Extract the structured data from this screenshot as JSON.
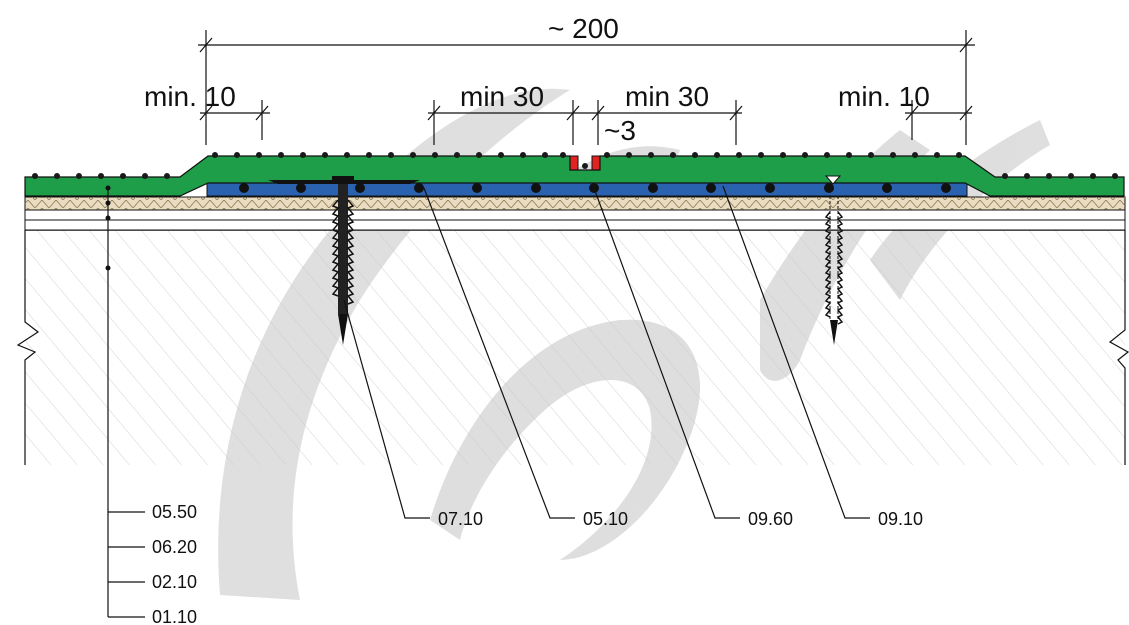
{
  "dimensions": {
    "total": "~ 200",
    "left_min": "min. 10",
    "right_min": "min. 10",
    "center_left": "min 30",
    "center_right": "min 30",
    "gap": "~3"
  },
  "callouts_bottom": [
    "07.10",
    "05.10",
    "09.60",
    "09.10"
  ],
  "callouts_left": [
    "05.50",
    "06.20",
    "02.10",
    "01.10"
  ],
  "colors": {
    "membrane": "#1f9e4a",
    "band": "#2b62b0",
    "seal": "#e32222",
    "substrate": "#e9dcc0",
    "watermark": "#d4d4d4"
  }
}
